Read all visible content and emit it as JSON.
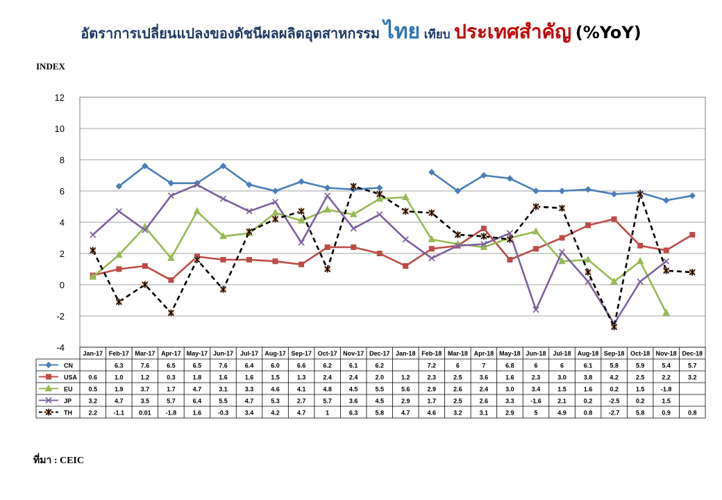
{
  "header": {
    "title_main": "อัตราการเปลี่ยนแปลงของดัชนีผลผลิตอุตสาหกรรม",
    "title_thai": "ไทย",
    "title_compare": "เทียบ",
    "title_key": "ประเทศสำคัญ",
    "title_unit": "(%YoY)"
  },
  "index_label": "INDEX",
  "source": "ที่มา : CEIC",
  "chart_data": {
    "type": "line",
    "ylim": [
      -4,
      12
    ],
    "yticks": [
      -4,
      -2,
      0,
      2,
      4,
      6,
      8,
      10,
      12
    ],
    "grid": true,
    "categories": [
      "Jan-17",
      "Feb-17",
      "Mar-17",
      "Apr-17",
      "May-17",
      "Jun-17",
      "Jul-17",
      "Aug-17",
      "Sep-17",
      "Oct-17",
      "Nov-17",
      "Dec-17",
      "Jan-18",
      "Feb-18",
      "Mar-18",
      "Apr-18",
      "May-18",
      "Jun-18",
      "Jul-18",
      "Aug-18",
      "Sep-18",
      "Oct-18",
      "Nov-18",
      "Dec-18"
    ],
    "series": [
      {
        "name": "CN",
        "color": "#4a7ebb",
        "marker": "diamond",
        "dash": false,
        "values": [
          null,
          6.3,
          7.6,
          6.5,
          6.5,
          7.6,
          6.4,
          6.0,
          6.6,
          6.2,
          6.1,
          6.2,
          null,
          7.2,
          6,
          7,
          6.8,
          6,
          6,
          6.1,
          5.8,
          5.9,
          5.4,
          5.7
        ],
        "labels": [
          "",
          "6.3",
          "7.6",
          "6.5",
          "6.5",
          "7.6",
          "6.4",
          "6.0",
          "6.6",
          "6.2",
          "6.1",
          "6.2",
          "",
          "7.2",
          "6",
          "7",
          "6.8",
          "6",
          "6",
          "6.1",
          "5.8",
          "5.9",
          "5.4",
          "5.7"
        ]
      },
      {
        "name": "USA",
        "color": "#be4b48",
        "marker": "square",
        "dash": false,
        "values": [
          0.6,
          1.0,
          1.2,
          0.3,
          1.8,
          1.6,
          1.6,
          1.5,
          1.3,
          2.4,
          2.4,
          2.0,
          1.2,
          2.3,
          2.5,
          3.6,
          1.6,
          2.3,
          3.0,
          3.8,
          4.2,
          2.5,
          2.2,
          3.2
        ],
        "labels": [
          "0.6",
          "1.0",
          "1.2",
          "0.3",
          "1.8",
          "1.6",
          "1.6",
          "1.5",
          "1.3",
          "2.4",
          "2.4",
          "2.0",
          "1.2",
          "2.3",
          "2.5",
          "3.6",
          "1.6",
          "2.3",
          "3.0",
          "3.8",
          "4.2",
          "2.5",
          "2.2",
          "3.2"
        ]
      },
      {
        "name": "EU",
        "color": "#98b954",
        "marker": "triangle",
        "dash": false,
        "values": [
          0.5,
          1.9,
          3.7,
          1.7,
          4.7,
          3.1,
          3.3,
          4.6,
          4.1,
          4.8,
          4.5,
          5.5,
          5.6,
          2.9,
          2.6,
          2.4,
          3.0,
          3.4,
          1.5,
          1.6,
          0.2,
          1.5,
          -1.8,
          null
        ],
        "labels": [
          "0.5",
          "1.9",
          "3.7",
          "1.7",
          "4.7",
          "3.1",
          "3.3",
          "4.6",
          "4.1",
          "4.8",
          "4.5",
          "5.5",
          "5.6",
          "2.9",
          "2.6",
          "2.4",
          "3.0",
          "3.4",
          "1.5",
          "1.6",
          "0.2",
          "1.5",
          "-1.8",
          ""
        ]
      },
      {
        "name": "JP",
        "color": "#7d60a0",
        "marker": "x",
        "dash": false,
        "values": [
          3.2,
          4.7,
          3.5,
          5.7,
          6.4,
          5.5,
          4.7,
          5.3,
          2.7,
          5.7,
          3.6,
          4.5,
          2.9,
          1.7,
          2.5,
          2.6,
          3.3,
          -1.6,
          2.1,
          0.2,
          -2.5,
          0.2,
          1.5,
          null
        ],
        "labels": [
          "3.2",
          "4.7",
          "3.5",
          "5.7",
          "6.4",
          "5.5",
          "4.7",
          "5.3",
          "2.7",
          "5.7",
          "3.6",
          "4.5",
          "2.9",
          "1.7",
          "2.5",
          "2.6",
          "3.3",
          "-1.6",
          "2.1",
          "0.2",
          "-2.5",
          "0.2",
          "1.5",
          ""
        ]
      },
      {
        "name": "TH",
        "color": "#000000",
        "marker": "star",
        "dash": true,
        "marker_fill": "#e8a77c",
        "values": [
          2.2,
          -1.1,
          0.01,
          -1.8,
          1.6,
          -0.3,
          3.4,
          4.2,
          4.7,
          1,
          6.3,
          5.8,
          4.7,
          4.6,
          3.2,
          3.1,
          2.9,
          5,
          4.9,
          0.8,
          -2.7,
          5.8,
          0.9,
          0.8
        ],
        "labels": [
          "2.2",
          "-1.1",
          "0.01",
          "-1.8",
          "1.6",
          "-0.3",
          "3.4",
          "4.2",
          "4.7",
          "1",
          "6.3",
          "5.8",
          "4.7",
          "4.6",
          "3.2",
          "3.1",
          "2.9",
          "5",
          "4.9",
          "0.8",
          "-2.7",
          "5.8",
          "0.9",
          "0.8"
        ]
      }
    ]
  }
}
